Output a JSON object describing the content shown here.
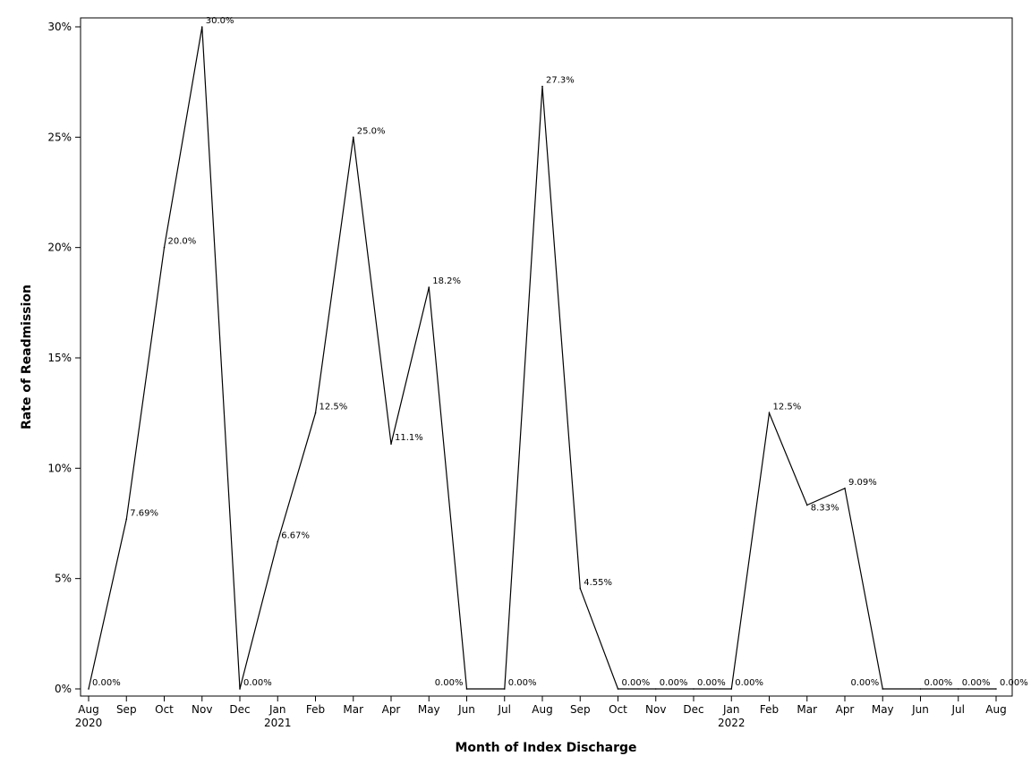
{
  "chart_data": {
    "type": "line",
    "title": "",
    "xlabel": "Month of Index Discharge",
    "ylabel": "Rate of Readmission",
    "ylim": [
      0,
      30
    ],
    "y_ticks": [
      "0%",
      "5%",
      "10%",
      "15%",
      "20%",
      "25%",
      "30%"
    ],
    "y_tick_values": [
      0,
      5,
      10,
      15,
      20,
      25,
      30
    ],
    "grid": false,
    "legend": "none",
    "categories": [
      "Aug",
      "Sep",
      "Oct",
      "Nov",
      "Dec",
      "Jan",
      "Feb",
      "Mar",
      "Apr",
      "May",
      "Jun",
      "Jul",
      "Aug",
      "Sep",
      "Oct",
      "Nov",
      "Dec",
      "Jan",
      "Feb",
      "Mar",
      "Apr",
      "May",
      "Jun",
      "Jul",
      "Aug"
    ],
    "year_labels": {
      "0": "2020",
      "5": "2021",
      "17": "2022"
    },
    "series": [
      {
        "values": [
          0,
          7.69,
          20.0,
          30.0,
          0,
          6.67,
          12.5,
          25.0,
          11.1,
          18.2,
          0,
          0,
          27.3,
          4.55,
          0,
          0,
          0,
          0,
          12.5,
          8.33,
          9.09,
          0,
          0,
          0,
          0
        ],
        "labels": [
          "0.00%",
          "7.69%",
          "20.0%",
          "30.0%",
          "0.00%",
          "6.67%",
          "12.5%",
          "25.0%",
          "11.1%",
          "18.2%",
          "0.00%",
          "0.00%",
          "27.3%",
          "4.55%",
          "0.00%",
          "0.00%",
          "0.00%",
          "0.00%",
          "12.5%",
          "8.33%",
          "9.09%",
          "0.00%",
          "0.00%",
          "0.00%",
          "0.00%"
        ],
        "label_sides": [
          "r",
          "r",
          "r",
          "r",
          "r",
          "r",
          "r",
          "r",
          "r",
          "r",
          "l",
          "r",
          "r",
          "r",
          "r",
          "r",
          "r",
          "r",
          "r",
          "br",
          "r",
          "l",
          "r",
          "r",
          "r"
        ],
        "color": "#000000"
      }
    ]
  }
}
